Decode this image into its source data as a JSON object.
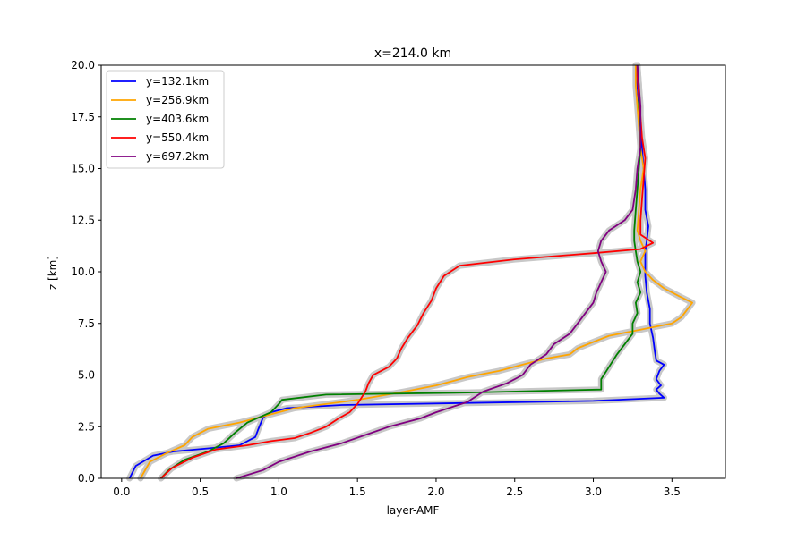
{
  "chart_data": {
    "type": "line",
    "title": "x=214.0 km",
    "xlabel": "layer-AMF",
    "ylabel": "z [km]",
    "xlim": [
      -0.13,
      3.84
    ],
    "ylim": [
      0,
      20
    ],
    "xticks": [
      0.0,
      0.5,
      1.0,
      1.5,
      2.0,
      2.5,
      3.0,
      3.5
    ],
    "xtick_labels": [
      "0.0",
      "0.5",
      "1.0",
      "1.5",
      "2.0",
      "2.5",
      "3.0",
      "3.5"
    ],
    "yticks": [
      0.0,
      2.5,
      5.0,
      7.5,
      10.0,
      12.5,
      15.0,
      17.5,
      20.0
    ],
    "ytick_labels": [
      "0.0",
      "2.5",
      "5.0",
      "7.5",
      "10.0",
      "12.5",
      "15.0",
      "17.5",
      "20.0"
    ],
    "grid": false,
    "legend": "upper-left",
    "uncertainty_band_color": "#c8c8c8",
    "series": [
      {
        "name": "y=132.1km",
        "color": "#0000ff",
        "points": [
          [
            0.05,
            0
          ],
          [
            0.09,
            0.6
          ],
          [
            0.2,
            1.1
          ],
          [
            0.33,
            1.3
          ],
          [
            0.55,
            1.45
          ],
          [
            0.75,
            1.6
          ],
          [
            0.85,
            2.0
          ],
          [
            0.87,
            2.4
          ],
          [
            0.9,
            2.95
          ],
          [
            0.95,
            3.2
          ],
          [
            1.05,
            3.4
          ],
          [
            1.4,
            3.55
          ],
          [
            2.2,
            3.65
          ],
          [
            3.0,
            3.75
          ],
          [
            3.45,
            3.9
          ],
          [
            3.42,
            4.1
          ],
          [
            3.4,
            4.3
          ],
          [
            3.43,
            4.5
          ],
          [
            3.4,
            4.8
          ],
          [
            3.42,
            5.2
          ],
          [
            3.45,
            5.5
          ],
          [
            3.4,
            5.7
          ],
          [
            3.39,
            6.2
          ],
          [
            3.38,
            6.8
          ],
          [
            3.36,
            7.5
          ],
          [
            3.36,
            8.2
          ],
          [
            3.34,
            9.0
          ],
          [
            3.33,
            9.8
          ],
          [
            3.33,
            10.5
          ],
          [
            3.33,
            11.0
          ],
          [
            3.34,
            11.5
          ],
          [
            3.35,
            12.2
          ],
          [
            3.33,
            13.0
          ],
          [
            3.33,
            14.0
          ],
          [
            3.32,
            15.0
          ],
          [
            3.31,
            16.0
          ],
          [
            3.3,
            17.0
          ],
          [
            3.29,
            18.0
          ],
          [
            3.28,
            19.0
          ],
          [
            3.27,
            20.0
          ]
        ]
      },
      {
        "name": "y=256.9km",
        "color": "#ffa500",
        "points": [
          [
            0.12,
            0
          ],
          [
            0.18,
            0.8
          ],
          [
            0.28,
            1.2
          ],
          [
            0.4,
            1.6
          ],
          [
            0.45,
            2.0
          ],
          [
            0.55,
            2.4
          ],
          [
            0.75,
            2.7
          ],
          [
            0.95,
            3.1
          ],
          [
            1.1,
            3.4
          ],
          [
            1.5,
            3.8
          ],
          [
            1.8,
            4.2
          ],
          [
            2.0,
            4.5
          ],
          [
            2.2,
            4.9
          ],
          [
            2.4,
            5.2
          ],
          [
            2.55,
            5.5
          ],
          [
            2.7,
            5.8
          ],
          [
            2.85,
            6.0
          ],
          [
            2.9,
            6.3
          ],
          [
            3.0,
            6.6
          ],
          [
            3.1,
            6.9
          ],
          [
            3.3,
            7.2
          ],
          [
            3.5,
            7.5
          ],
          [
            3.56,
            7.8
          ],
          [
            3.6,
            8.2
          ],
          [
            3.63,
            8.5
          ],
          [
            3.55,
            8.8
          ],
          [
            3.45,
            9.2
          ],
          [
            3.38,
            9.6
          ],
          [
            3.33,
            10.0
          ],
          [
            3.3,
            10.5
          ],
          [
            3.33,
            11.0
          ],
          [
            3.3,
            11.5
          ],
          [
            3.28,
            12.0
          ],
          [
            3.29,
            13.0
          ],
          [
            3.3,
            14.0
          ],
          [
            3.32,
            15.0
          ],
          [
            3.3,
            16.0
          ],
          [
            3.29,
            17.0
          ],
          [
            3.28,
            18.0
          ],
          [
            3.27,
            19.0
          ],
          [
            3.27,
            20.0
          ]
        ]
      },
      {
        "name": "y=403.6km",
        "color": "#008000",
        "points": [
          [
            0.25,
            0
          ],
          [
            0.3,
            0.4
          ],
          [
            0.4,
            0.9
          ],
          [
            0.55,
            1.3
          ],
          [
            0.65,
            1.7
          ],
          [
            0.72,
            2.2
          ],
          [
            0.8,
            2.7
          ],
          [
            0.95,
            3.2
          ],
          [
            1.0,
            3.6
          ],
          [
            1.02,
            3.8
          ],
          [
            1.3,
            4.05
          ],
          [
            2.2,
            4.15
          ],
          [
            3.05,
            4.3
          ],
          [
            3.05,
            4.8
          ],
          [
            3.1,
            5.4
          ],
          [
            3.15,
            6.0
          ],
          [
            3.2,
            6.5
          ],
          [
            3.25,
            7.0
          ],
          [
            3.25,
            7.5
          ],
          [
            3.28,
            8.0
          ],
          [
            3.27,
            8.5
          ],
          [
            3.3,
            9.0
          ],
          [
            3.28,
            9.5
          ],
          [
            3.3,
            10.0
          ],
          [
            3.28,
            10.5
          ],
          [
            3.27,
            11.0
          ],
          [
            3.26,
            11.5
          ],
          [
            3.26,
            12.0
          ],
          [
            3.27,
            13.0
          ],
          [
            3.28,
            14.0
          ],
          [
            3.29,
            15.0
          ],
          [
            3.3,
            16.0
          ],
          [
            3.3,
            17.0
          ],
          [
            3.29,
            18.0
          ],
          [
            3.29,
            19.0
          ],
          [
            3.28,
            20.0
          ]
        ]
      },
      {
        "name": "y=550.4km",
        "color": "#ff0000",
        "points": [
          [
            0.25,
            0
          ],
          [
            0.32,
            0.5
          ],
          [
            0.45,
            1.0
          ],
          [
            0.6,
            1.4
          ],
          [
            0.8,
            1.6
          ],
          [
            0.95,
            1.8
          ],
          [
            1.1,
            1.95
          ],
          [
            1.2,
            2.2
          ],
          [
            1.3,
            2.5
          ],
          [
            1.38,
            2.9
          ],
          [
            1.45,
            3.2
          ],
          [
            1.5,
            3.6
          ],
          [
            1.55,
            4.2
          ],
          [
            1.57,
            4.6
          ],
          [
            1.6,
            5.0
          ],
          [
            1.7,
            5.4
          ],
          [
            1.75,
            5.8
          ],
          [
            1.78,
            6.3
          ],
          [
            1.82,
            6.8
          ],
          [
            1.88,
            7.4
          ],
          [
            1.92,
            8.0
          ],
          [
            1.97,
            8.6
          ],
          [
            2.0,
            9.2
          ],
          [
            2.05,
            9.8
          ],
          [
            2.15,
            10.3
          ],
          [
            2.5,
            10.6
          ],
          [
            3.0,
            10.9
          ],
          [
            3.3,
            11.1
          ],
          [
            3.38,
            11.4
          ],
          [
            3.3,
            11.8
          ],
          [
            3.3,
            12.5
          ],
          [
            3.31,
            13.5
          ],
          [
            3.32,
            14.5
          ],
          [
            3.33,
            15.5
          ],
          [
            3.31,
            16.5
          ],
          [
            3.3,
            17.5
          ],
          [
            3.29,
            18.5
          ],
          [
            3.28,
            19.5
          ],
          [
            3.28,
            20.0
          ]
        ]
      },
      {
        "name": "y=697.2km",
        "color": "#800080",
        "points": [
          [
            0.73,
            0
          ],
          [
            0.9,
            0.4
          ],
          [
            1.0,
            0.8
          ],
          [
            1.2,
            1.3
          ],
          [
            1.4,
            1.7
          ],
          [
            1.55,
            2.1
          ],
          [
            1.7,
            2.5
          ],
          [
            1.9,
            2.9
          ],
          [
            2.0,
            3.2
          ],
          [
            2.2,
            3.7
          ],
          [
            2.3,
            4.2
          ],
          [
            2.45,
            4.6
          ],
          [
            2.55,
            5.0
          ],
          [
            2.6,
            5.5
          ],
          [
            2.7,
            6.0
          ],
          [
            2.75,
            6.5
          ],
          [
            2.85,
            7.0
          ],
          [
            2.9,
            7.5
          ],
          [
            2.95,
            8.0
          ],
          [
            3.0,
            8.5
          ],
          [
            3.02,
            9.0
          ],
          [
            3.05,
            9.5
          ],
          [
            3.08,
            10.0
          ],
          [
            3.05,
            10.5
          ],
          [
            3.03,
            11.0
          ],
          [
            3.05,
            11.5
          ],
          [
            3.1,
            12.0
          ],
          [
            3.2,
            12.5
          ],
          [
            3.25,
            13.0
          ],
          [
            3.27,
            14.0
          ],
          [
            3.28,
            15.0
          ],
          [
            3.3,
            16.0
          ],
          [
            3.3,
            17.0
          ],
          [
            3.3,
            18.0
          ],
          [
            3.29,
            19.0
          ],
          [
            3.28,
            20.0
          ]
        ]
      }
    ]
  }
}
